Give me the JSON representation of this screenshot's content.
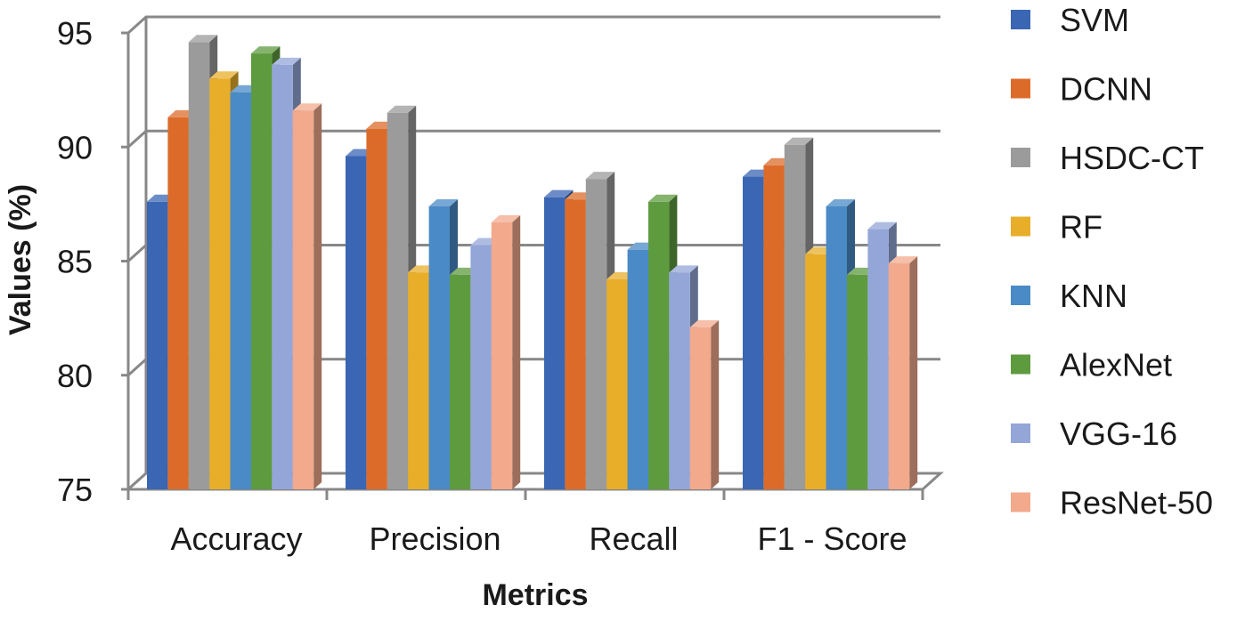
{
  "chart_data": {
    "type": "bar",
    "title": "",
    "xlabel": "Metrics",
    "ylabel": "Values (%)",
    "ylim": [
      75,
      95
    ],
    "yticks": [
      75,
      80,
      85,
      90,
      95
    ],
    "grid": true,
    "legend_position": "right",
    "categories": [
      "Accuracy",
      "Precision",
      "Recall",
      "F1 - Score"
    ],
    "series": [
      {
        "name": "SVM",
        "color": "#3a66b3",
        "values": [
          87.6,
          89.6,
          87.8,
          88.7
        ]
      },
      {
        "name": "DCNN",
        "color": "#dc6b2a",
        "values": [
          91.3,
          90.8,
          87.7,
          89.2
        ]
      },
      {
        "name": "HSDC-CT",
        "color": "#9b9b9b",
        "values": [
          94.6,
          91.5,
          88.6,
          90.1
        ]
      },
      {
        "name": "RF",
        "color": "#e8ae29",
        "values": [
          93.0,
          84.5,
          84.2,
          85.3
        ]
      },
      {
        "name": "KNN",
        "color": "#4a8ac6",
        "values": [
          92.4,
          87.4,
          85.5,
          87.4
        ]
      },
      {
        "name": "AlexNet",
        "color": "#5e9b3f",
        "values": [
          94.1,
          84.4,
          87.6,
          84.4
        ]
      },
      {
        "name": "VGG-16",
        "color": "#94a6d8",
        "values": [
          93.6,
          85.7,
          84.5,
          86.4
        ]
      },
      {
        "name": "ResNet-50",
        "color": "#f2a98c",
        "values": [
          91.6,
          86.7,
          82.1,
          84.9
        ]
      }
    ]
  }
}
